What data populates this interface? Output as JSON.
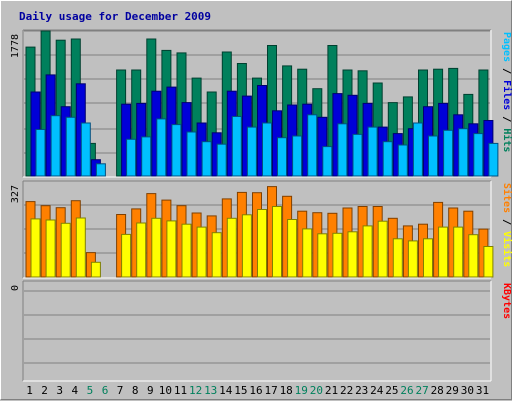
{
  "chart_data": {
    "type": "bar",
    "title": "Daily usage for December 2009",
    "colors": {
      "hits": "#00805c",
      "files": "#0000d8",
      "pages": "#00c0ff",
      "visits": "#ff8000",
      "sites": "#ffff00",
      "kbytes": "#ff0000",
      "weekday": "#000000",
      "weekend": "#00805c",
      "background": "#c0c0c0"
    },
    "categories": [
      "1",
      "2",
      "3",
      "4",
      "5",
      "6",
      "7",
      "8",
      "9",
      "10",
      "11",
      "12",
      "13",
      "14",
      "15",
      "16",
      "17",
      "18",
      "19",
      "20",
      "21",
      "22",
      "23",
      "24",
      "25",
      "26",
      "27",
      "28",
      "29",
      "30",
      "31"
    ],
    "weekend_days": [
      "5",
      "6",
      "12",
      "13",
      "19",
      "20",
      "26",
      "27"
    ],
    "panels": [
      {
        "id": "top",
        "ytick_max": "1778",
        "ymax": 1778,
        "side_label": [
          {
            "text": "Pages",
            "color": "#00c0ff"
          },
          {
            "text": " / ",
            "color": "#000000"
          },
          {
            "text": "Files",
            "color": "#0000d8"
          },
          {
            "text": " / ",
            "color": "#000000"
          },
          {
            "text": "Hits",
            "color": "#00805c"
          }
        ],
        "series": [
          {
            "name": "Hits",
            "values": [
              1580,
              1778,
              1665,
              1680,
              400,
              0,
              1300,
              1300,
              1680,
              1540,
              1510,
              1200,
              1030,
              1520,
              1380,
              1200,
              1600,
              1350,
              1310,
              1070,
              1600,
              1300,
              1290,
              1140,
              900,
              970,
              1300,
              1310,
              1320,
              1000,
              1300
            ]
          },
          {
            "name": "Files",
            "values": [
              1030,
              1240,
              850,
              1130,
              200,
              0,
              880,
              890,
              1040,
              1090,
              900,
              650,
              530,
              1040,
              980,
              1110,
              800,
              870,
              880,
              720,
              1010,
              990,
              890,
              600,
              520,
              580,
              850,
              890,
              750,
              640,
              680
            ]
          },
          {
            "name": "Pages",
            "values": [
              570,
              740,
              720,
              650,
              150,
              0,
              450,
              480,
              700,
              630,
              540,
              420,
              390,
              730,
              600,
              650,
              470,
              490,
              750,
              360,
              640,
              510,
              600,
              420,
              380,
              650,
              490,
              560,
              580,
              520,
              400
            ]
          }
        ]
      },
      {
        "id": "mid",
        "ytick_max": "327",
        "ymax": 327,
        "side_label": [
          {
            "text": "Sites",
            "color": "#ff8000"
          },
          {
            "text": " / ",
            "color": "#000000"
          },
          {
            "text": "Visits",
            "color": "#ffff00"
          }
        ],
        "series": [
          {
            "name": "Visits",
            "values": [
              257,
              243,
              236,
              260,
              83,
              0,
              213,
              232,
              284,
              262,
              243,
              218,
              208,
              266,
              288,
              287,
              308,
              275,
              224,
              219,
              217,
              235,
              240,
              240,
              200,
              174,
              180,
              254,
              235,
              224,
              163
            ]
          },
          {
            "name": "Sites",
            "values": [
              198,
              194,
              183,
              201,
              50,
              0,
              145,
              184,
              200,
              191,
              180,
              170,
              151,
              200,
              212,
              230,
              240,
              196,
              164,
              147,
              149,
              154,
              174,
              190,
              130,
              123,
              130,
              170,
              170,
              144,
              104
            ]
          }
        ]
      },
      {
        "id": "bottom",
        "ytick_max": "0",
        "ymax": 1,
        "side_label": [
          {
            "text": "KBytes",
            "color": "#ff0000"
          }
        ],
        "series": []
      }
    ]
  }
}
